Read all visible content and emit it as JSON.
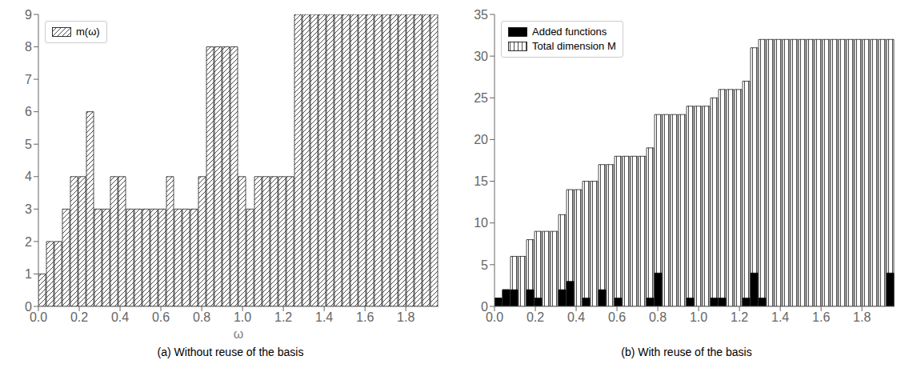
{
  "chart_data": [
    {
      "type": "histogram",
      "title": "(a)  Without reuse of the basis",
      "xlabel": "ω",
      "bins": [
        0,
        0.0392,
        0.0784,
        0.1176,
        0.1568,
        0.196,
        0.2352,
        0.2744,
        0.3136,
        0.3528,
        0.392,
        0.4312,
        0.4704,
        0.5096,
        0.5488,
        0.588,
        0.6272,
        0.6664,
        0.7056,
        0.7448,
        0.784,
        0.8232,
        0.8624,
        0.9016,
        0.9408,
        0.98,
        1.0192,
        1.0584,
        1.0976,
        1.1368,
        1.176,
        1.2152,
        1.2544,
        1.2936,
        1.3328,
        1.372,
        1.4112,
        1.4504,
        1.4896,
        1.5288,
        1.568,
        1.6072,
        1.6464,
        1.6856,
        1.7248,
        1.764,
        1.8032,
        1.8424,
        1.8816,
        1.9208,
        1.96
      ],
      "series": [
        {
          "name": "m(ω)",
          "color": "white",
          "values": [
            1,
            2,
            2,
            3,
            4,
            4,
            6,
            3,
            3,
            4,
            4,
            3,
            3,
            3,
            3,
            3,
            4,
            3,
            3,
            3,
            4,
            8,
            8,
            8,
            8,
            4,
            3,
            4,
            4,
            4,
            4,
            4,
            9,
            9,
            9,
            9,
            9,
            9,
            9,
            9,
            9,
            9,
            9,
            9,
            9,
            9,
            9,
            9,
            9,
            9
          ]
        }
      ],
      "xlim": [
        0,
        1.96
      ],
      "xticks": [
        {
          "value": 0,
          "label": "0.0"
        },
        0.2,
        0.4,
        0.6,
        0.8,
        {
          "value": 1,
          "label": "1.0"
        },
        1.2,
        1.4,
        1.6,
        1.8
      ],
      "ylim": [
        0,
        9
      ],
      "yticks": [
        0,
        1,
        2,
        3,
        4,
        5,
        6,
        7,
        8,
        9
      ],
      "legend": "upper left"
    },
    {
      "type": "histogram",
      "title": "(b)  With reuse of the basis",
      "bins": [
        0,
        0.0392,
        0.0784,
        0.1176,
        0.1568,
        0.196,
        0.2352,
        0.2744,
        0.3136,
        0.3528,
        0.392,
        0.4312,
        0.4704,
        0.5096,
        0.5488,
        0.588,
        0.6272,
        0.6664,
        0.7056,
        0.7448,
        0.784,
        0.8232,
        0.8624,
        0.9016,
        0.9408,
        0.98,
        1.0192,
        1.0584,
        1.0976,
        1.1368,
        1.176,
        1.2152,
        1.2544,
        1.2936,
        1.3328,
        1.372,
        1.4112,
        1.4504,
        1.4896,
        1.5288,
        1.568,
        1.6072,
        1.6464,
        1.6856,
        1.7248,
        1.764,
        1.8032,
        1.8424,
        1.8816,
        1.9208,
        1.96
      ],
      "series": [
        {
          "name": "Total dimension M",
          "color": "white",
          "values": [
            1,
            2,
            6,
            6,
            8,
            9,
            9,
            9,
            11,
            14,
            14,
            15,
            15,
            17,
            17,
            18,
            18,
            18,
            18,
            19,
            23,
            23,
            23,
            23,
            24,
            24,
            24,
            25,
            26,
            26,
            26,
            27,
            31,
            32,
            32,
            32,
            32,
            32,
            32,
            32,
            32,
            32,
            32,
            32,
            32,
            32,
            32,
            32,
            32,
            32
          ]
        },
        {
          "name": "Added functions",
          "color": "black",
          "values": [
            1,
            2,
            2,
            0,
            2,
            1,
            0,
            0,
            2,
            3,
            0,
            1,
            0,
            2,
            0,
            1,
            0,
            0,
            0,
            1,
            4,
            0,
            0,
            0,
            1,
            0,
            0,
            1,
            1,
            0,
            0,
            1,
            4,
            1,
            0,
            0,
            0,
            0,
            0,
            0,
            0,
            0,
            0,
            0,
            0,
            0,
            0,
            0,
            0,
            4
          ]
        }
      ],
      "xlim": [
        0,
        1.96
      ],
      "xticks": [
        {
          "value": 0,
          "label": "0.0"
        },
        0.2,
        0.4,
        0.6,
        0.8,
        {
          "value": 1,
          "label": "1.0"
        },
        1.2,
        1.4,
        1.6,
        1.8
      ],
      "ylim": [
        0,
        35
      ],
      "yticks": [
        0,
        5,
        10,
        15,
        20,
        25,
        30,
        35
      ],
      "legend": "upper left"
    }
  ]
}
